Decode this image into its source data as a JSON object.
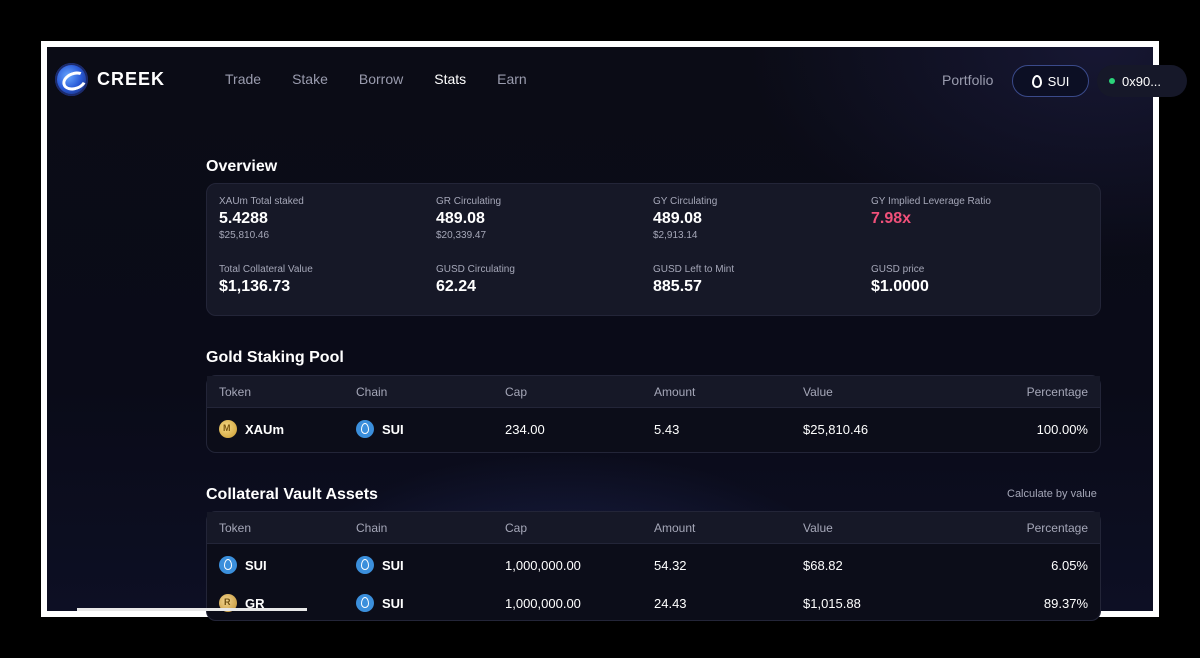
{
  "header": {
    "logo_text": "CREEK",
    "nav": [
      {
        "label": "Trade",
        "active": false
      },
      {
        "label": "Stake",
        "active": false
      },
      {
        "label": "Borrow",
        "active": false
      },
      {
        "label": "Stats",
        "active": true
      },
      {
        "label": "Earn",
        "active": false
      }
    ],
    "portfolio_label": "Portfolio",
    "chain_label": "SUI",
    "address": "0x90..."
  },
  "overview": {
    "title": "Overview",
    "stats": [
      {
        "label": "XAUm Total staked",
        "value": "5.4288",
        "sub": "$25,810.46"
      },
      {
        "label": "GR Circulating",
        "value": "489.08",
        "sub": "$20,339.47"
      },
      {
        "label": "GY Circulating",
        "value": "489.08",
        "sub": "$2,913.14"
      },
      {
        "label": "GY Implied Leverage Ratio",
        "value": "7.98x",
        "sub": ""
      },
      {
        "label": "Total Collateral Value",
        "value": "$1,136.73",
        "sub": ""
      },
      {
        "label": "GUSD Circulating",
        "value": "62.24",
        "sub": ""
      },
      {
        "label": "GUSD Left to Mint",
        "value": "885.57",
        "sub": ""
      },
      {
        "label": "GUSD price",
        "value": "$1.0000",
        "sub": ""
      }
    ]
  },
  "gold_pool": {
    "title": "Gold Staking Pool",
    "columns": [
      "Token",
      "Chain",
      "Cap",
      "Amount",
      "Value",
      "Percentage"
    ],
    "rows": [
      {
        "token": "XAUm",
        "chain": "SUI",
        "cap": "234.00",
        "amount": "5.43",
        "value": "$25,810.46",
        "percentage": "100.00%"
      }
    ]
  },
  "collateral": {
    "title": "Collateral Vault Assets",
    "calc_label": "Calculate by value",
    "columns": [
      "Token",
      "Chain",
      "Cap",
      "Amount",
      "Value",
      "Percentage"
    ],
    "rows": [
      {
        "token": "SUI",
        "chain": "SUI",
        "cap": "1,000,000.00",
        "amount": "54.32",
        "value": "$68.82",
        "percentage": "6.05%"
      },
      {
        "token": "GR",
        "chain": "SUI",
        "cap": "1,000,000.00",
        "amount": "24.43",
        "value": "$1,015.88",
        "percentage": "89.37%"
      }
    ]
  },
  "colors": {
    "accent_pink": "#f0507a",
    "status_green": "#2bd47a",
    "panel_bg": "#161827"
  }
}
